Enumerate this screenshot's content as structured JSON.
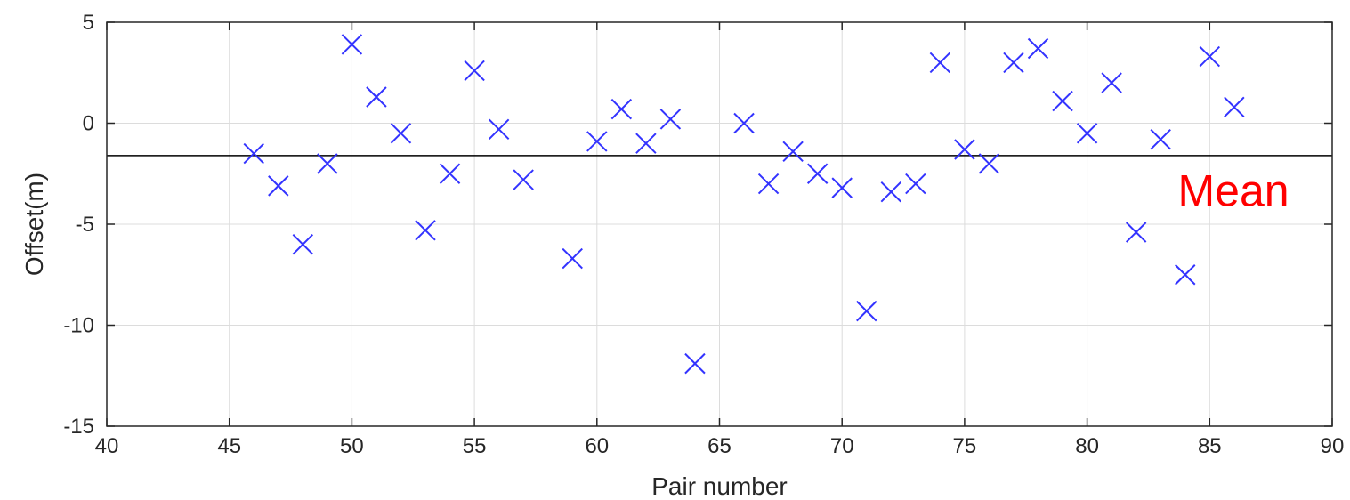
{
  "chart_data": {
    "type": "scatter",
    "title": "",
    "xlabel": "Pair number",
    "ylabel": "Offset(m)",
    "xlim": [
      40,
      90
    ],
    "ylim": [
      -15,
      5
    ],
    "xticks": [
      40,
      45,
      50,
      55,
      60,
      65,
      70,
      75,
      80,
      85,
      90
    ],
    "yticks": [
      -15,
      -10,
      -5,
      0,
      5
    ],
    "grid": true,
    "marker": "x",
    "marker_color": "#3333ff",
    "mean_line_color": "#000000",
    "annotation_color": "#ff0000",
    "mean_line": -1.6,
    "annotation": {
      "text": "Mean",
      "x": 83.7,
      "y": -3.3
    },
    "series": [
      {
        "x": [
          46,
          47,
          48,
          49,
          50,
          51,
          52,
          53,
          54,
          55,
          56,
          57,
          59,
          60,
          61,
          62,
          63,
          64,
          66,
          67,
          68,
          69,
          70,
          71,
          72,
          73,
          74,
          75,
          76,
          77,
          78,
          79,
          80,
          81,
          82,
          83,
          84,
          85,
          86
        ],
        "y": [
          -1.5,
          -3.1,
          -6.0,
          -2.0,
          3.9,
          1.3,
          -0.5,
          -5.3,
          -2.5,
          2.6,
          -0.3,
          -2.8,
          -6.7,
          -0.9,
          0.7,
          -1.0,
          0.2,
          -11.9,
          0.0,
          -3.0,
          -1.4,
          -2.5,
          -3.2,
          -9.3,
          -3.4,
          -3.0,
          3.0,
          -1.3,
          -2.0,
          3.0,
          3.7,
          1.1,
          -0.5,
          2.0,
          -5.4,
          -0.8,
          -7.5,
          3.3,
          0.8
        ]
      }
    ]
  }
}
